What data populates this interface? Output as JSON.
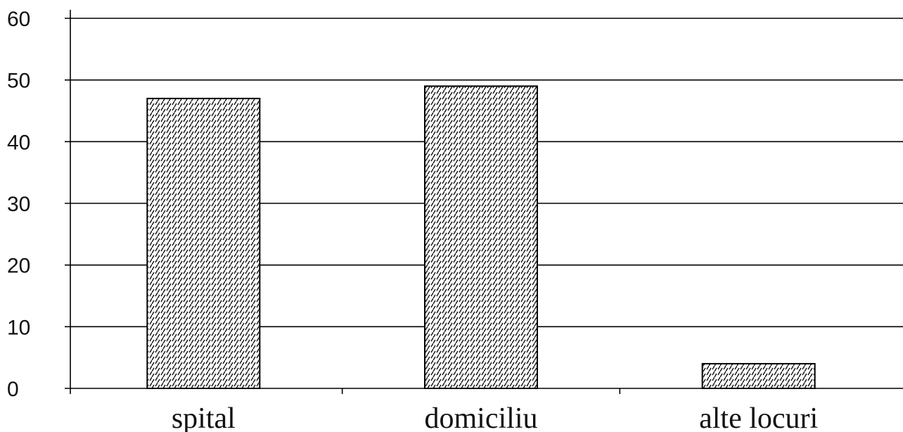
{
  "chart_data": {
    "type": "bar",
    "title": "",
    "xlabel": "",
    "ylabel": "",
    "categories": [
      "spital",
      "domiciliu",
      "alte locuri"
    ],
    "values": [
      47,
      49,
      4
    ],
    "ylim": [
      0,
      60
    ],
    "yticks": [
      "0",
      "10",
      "20",
      "30",
      "40",
      "50",
      "60"
    ],
    "grid": true,
    "bar_fill": "hatched (diagonal dashes)",
    "colors": {
      "bar_stroke": "#000000",
      "hatch": "#000000",
      "background": "#ffffff"
    }
  }
}
